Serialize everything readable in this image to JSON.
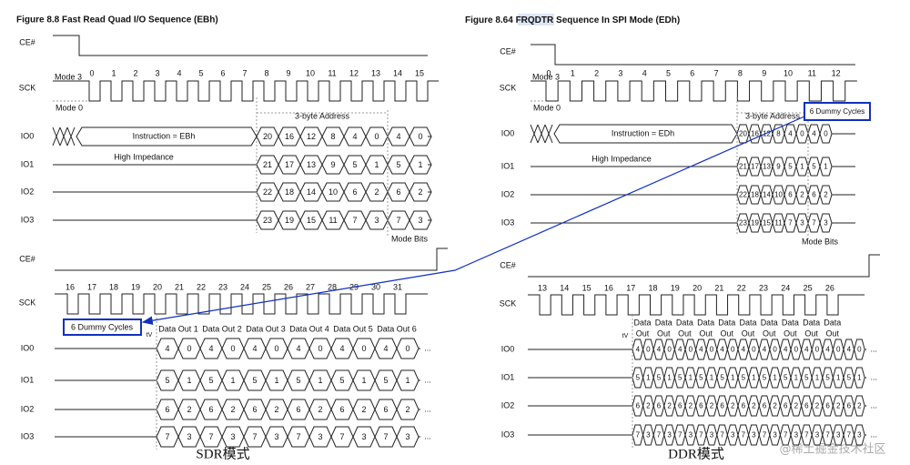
{
  "left": {
    "title": "Figure 8.8 Fast Read Quad I/O Sequence (EBh)",
    "top": {
      "signals": [
        "CE#",
        "SCK",
        "IO0",
        "IO1",
        "IO2",
        "IO3"
      ],
      "clocks": [
        0,
        1,
        2,
        3,
        4,
        5,
        6,
        7,
        8,
        9,
        10,
        11,
        12,
        13,
        14,
        15
      ],
      "mode3": "Mode 3",
      "mode0": "Mode 0",
      "address_label": "3-byte Address",
      "instruction": "Instruction = EBh",
      "high_impedance": "High Impedance",
      "mode_bits": "Mode Bits",
      "bits": [
        [
          20,
          16,
          12,
          8,
          4,
          0,
          4,
          0
        ],
        [
          21,
          17,
          13,
          9,
          5,
          1,
          5,
          1
        ],
        [
          22,
          18,
          14,
          10,
          6,
          2,
          6,
          2
        ],
        [
          23,
          19,
          15,
          11,
          7,
          3,
          7,
          3
        ]
      ]
    },
    "bottom": {
      "signals": [
        "CE#",
        "SCK",
        "IO0",
        "IO1",
        "IO2",
        "IO3"
      ],
      "clocks": [
        16,
        17,
        18,
        19,
        20,
        21,
        22,
        23,
        24,
        25,
        26,
        27,
        28,
        29,
        30,
        31
      ],
      "dummy": "6 Dummy Cycles",
      "tv": "tV",
      "data_out": [
        "Data Out 1",
        "Data Out 2",
        "Data Out 3",
        "Data Out 4",
        "Data Out 5",
        "Data Out 6"
      ],
      "more": "...",
      "bits": [
        [
          4,
          0,
          4,
          0,
          4,
          0,
          4,
          0,
          4,
          0,
          4,
          0
        ],
        [
          5,
          1,
          5,
          1,
          5,
          1,
          5,
          1,
          5,
          1,
          5,
          1
        ],
        [
          6,
          2,
          6,
          2,
          6,
          2,
          6,
          2,
          6,
          2,
          6,
          2
        ],
        [
          7,
          3,
          7,
          3,
          7,
          3,
          7,
          3,
          7,
          3,
          7,
          3
        ]
      ]
    },
    "caption": "SDR模式"
  },
  "right": {
    "title_prefix": "Figure 8.64 ",
    "title_highlight": "FRQDTR",
    "title_suffix": " Sequence In SPI Mode (EDh)",
    "top": {
      "signals": [
        "CE#",
        "SCK",
        "IO0",
        "IO1",
        "IO2",
        "IO3"
      ],
      "clocks": [
        0,
        1,
        2,
        3,
        4,
        5,
        6,
        7,
        8,
        9,
        10,
        11,
        12
      ],
      "mode3": "Mode 3",
      "mode0": "Mode 0",
      "address_label": "3-byte Address",
      "instruction": "Instruction = EDh",
      "high_impedance": "High Impedance",
      "mode_bits": "Mode Bits",
      "dummy": "6 Dummy Cycles",
      "bits": [
        [
          20,
          16,
          12,
          8,
          4,
          0,
          4,
          0
        ],
        [
          21,
          17,
          13,
          9,
          5,
          1,
          5,
          1
        ],
        [
          22,
          18,
          14,
          10,
          6,
          2,
          6,
          2
        ],
        [
          23,
          19,
          15,
          11,
          7,
          3,
          7,
          3
        ]
      ]
    },
    "bottom": {
      "signals": [
        "CE#",
        "SCK",
        "IO0",
        "IO1",
        "IO2",
        "IO3"
      ],
      "clocks": [
        13,
        14,
        15,
        16,
        17,
        18,
        19,
        20,
        21,
        22,
        23,
        24,
        25,
        26
      ],
      "tv": "tV",
      "more": "...",
      "data_out": [
        [
          "Data",
          "Out"
        ],
        [
          "Data",
          "Out"
        ],
        [
          "Data",
          "Out"
        ],
        [
          "Data",
          "Out"
        ],
        [
          "Data",
          "Out"
        ],
        [
          "Data",
          "Out"
        ],
        [
          "Data",
          "Out"
        ],
        [
          "Data",
          "Out"
        ],
        [
          "Data",
          "Out"
        ],
        [
          "Data",
          "Out"
        ]
      ],
      "bits": [
        [
          4,
          0,
          4,
          0,
          4,
          0,
          4,
          0,
          4,
          0,
          4,
          0,
          4,
          0,
          4,
          0,
          4,
          0,
          4,
          0,
          4,
          0
        ],
        [
          5,
          1,
          5,
          1,
          5,
          1,
          5,
          1,
          5,
          1,
          5,
          1,
          5,
          1,
          5,
          1,
          5,
          1,
          5,
          1,
          5,
          1
        ],
        [
          6,
          2,
          6,
          2,
          6,
          2,
          6,
          2,
          6,
          2,
          6,
          2,
          6,
          2,
          6,
          2,
          6,
          2,
          6,
          2,
          6,
          2
        ],
        [
          7,
          3,
          7,
          3,
          7,
          3,
          7,
          3,
          7,
          3,
          7,
          3,
          7,
          3,
          7,
          3,
          7,
          3,
          7,
          3,
          7,
          3
        ]
      ]
    },
    "caption": "DDR模式"
  },
  "watermark": "@稀土掘金技术社区"
}
